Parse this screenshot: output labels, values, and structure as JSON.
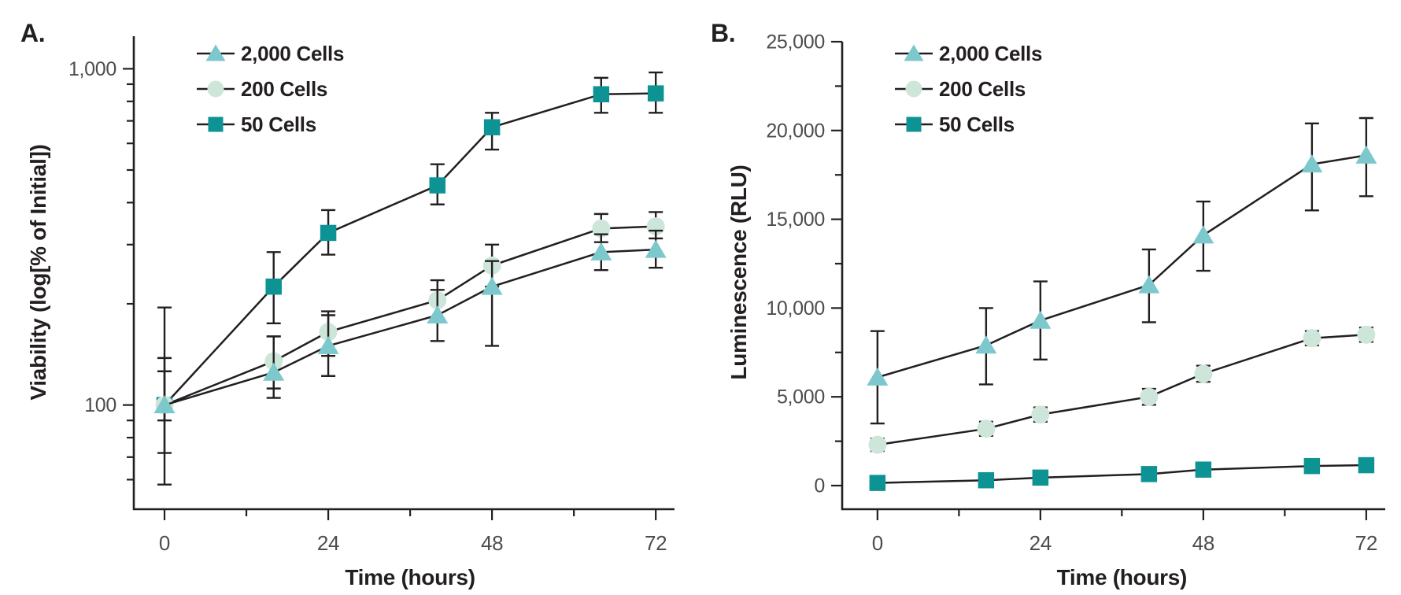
{
  "figure_background": "#ffffff",
  "colors": {
    "line": "#231f20",
    "axis": "#231f20",
    "title_text": "#231f20",
    "tick_text": "#4c4d4f",
    "series_2000_cells": "#7cc8cd",
    "series_200_cells": "#cee6d9",
    "series_50_cells": "#0e9394"
  },
  "legend": {
    "items": [
      {
        "label": "2,000 Cells",
        "marker": "triangle-icon",
        "color": "#7cc8cd"
      },
      {
        "label": "200 Cells",
        "marker": "circle-icon",
        "color": "#cee6d9"
      },
      {
        "label": "50 Cells",
        "marker": "square-icon",
        "color": "#0e9394"
      }
    ],
    "position": "top-left-inside"
  },
  "chart_data": [
    {
      "id": "A",
      "panel_label": "A.",
      "type": "line",
      "xlabel": "Time (hours)",
      "ylabel": "Viability (log[% of Initial])",
      "y_scale": "log",
      "ylim": [
        49,
        1250
      ],
      "xlim": [
        -4.5,
        74.75
      ],
      "grid": false,
      "x_major_ticks": [
        {
          "v": 0,
          "label": "0"
        },
        {
          "v": 24,
          "label": "24"
        },
        {
          "v": 48,
          "label": "48"
        },
        {
          "v": 72,
          "label": "72"
        }
      ],
      "x_minor_ticks": [
        12,
        36,
        60
      ],
      "y_major_ticks": [
        {
          "v": 100,
          "label": "100"
        },
        {
          "v": 1000,
          "label": "1,000"
        }
      ],
      "y_minor_ticks": [
        60,
        70,
        80,
        90,
        200,
        300,
        400,
        500,
        600,
        700,
        800,
        900
      ],
      "x": [
        0,
        16,
        24,
        40,
        48,
        64,
        72
      ],
      "series": [
        {
          "name": "2,000 Cells",
          "marker": "triangle",
          "color": "#7cc8cd",
          "values": [
            100,
            125,
            150,
            185,
            225,
            285,
            290
          ],
          "err_lo": [
            90,
            105,
            122,
            155,
            150,
            252,
            256
          ],
          "err_hi": [
            126,
            160,
            185,
            220,
            268,
            322,
            330
          ]
        },
        {
          "name": "200 Cells",
          "marker": "circle",
          "color": "#cee6d9",
          "values": [
            100,
            135,
            165,
            205,
            260,
            335,
            340
          ],
          "err_lo": [
            72,
            112,
            140,
            180,
            225,
            305,
            313
          ],
          "err_hi": [
            138,
            160,
            190,
            235,
            300,
            370,
            375
          ]
        },
        {
          "name": "50 Cells",
          "marker": "square",
          "color": "#0e9394",
          "values": [
            100,
            225,
            325,
            450,
            670,
            840,
            845
          ],
          "err_lo": [
            58,
            175,
            280,
            395,
            575,
            740,
            740
          ],
          "err_hi": [
            195,
            285,
            380,
            520,
            740,
            940,
            975
          ]
        }
      ]
    },
    {
      "id": "B",
      "panel_label": "B.",
      "type": "line",
      "xlabel": "Time (hours)",
      "ylabel": "Luminescence (RLU)",
      "y_scale": "linear",
      "ylim": [
        -1330,
        25000
      ],
      "xlim": [
        -5.2,
        74.8
      ],
      "grid": false,
      "x_major_ticks": [
        {
          "v": 0,
          "label": "0"
        },
        {
          "v": 24,
          "label": "24"
        },
        {
          "v": 48,
          "label": "48"
        },
        {
          "v": 72,
          "label": "72"
        }
      ],
      "x_minor_ticks": [
        12,
        36,
        60
      ],
      "y_major_ticks": [
        {
          "v": 0,
          "label": "0"
        },
        {
          "v": 5000,
          "label": "5,000"
        },
        {
          "v": 10000,
          "label": "10,000"
        },
        {
          "v": 15000,
          "label": "15,000"
        },
        {
          "v": 20000,
          "label": "20,000"
        },
        {
          "v": 25000,
          "label": "25,000"
        }
      ],
      "y_minor_ticks": [
        2500,
        7500,
        12500,
        17500,
        22500
      ],
      "x": [
        0,
        16,
        24,
        40,
        48,
        64,
        72
      ],
      "series": [
        {
          "name": "2,000 Cells",
          "marker": "triangle",
          "color": "#7cc8cd",
          "values": [
            6100,
            7900,
            9300,
            11300,
            14100,
            18100,
            18600
          ],
          "err_lo": [
            3500,
            5700,
            7100,
            9200,
            12100,
            15500,
            16300
          ],
          "err_hi": [
            8700,
            10000,
            11500,
            13300,
            16000,
            20400,
            20700
          ]
        },
        {
          "name": "200 Cells",
          "marker": "circle",
          "color": "#cee6d9",
          "values": [
            2300,
            3200,
            4000,
            5000,
            6300,
            8300,
            8500
          ],
          "err_lo": [
            1950,
            2800,
            3600,
            4550,
            5850,
            7900,
            8100
          ],
          "err_hi": [
            2650,
            3600,
            4400,
            5450,
            6750,
            8700,
            8900
          ]
        },
        {
          "name": "50 Cells",
          "marker": "square",
          "color": "#0e9394",
          "values": [
            150,
            300,
            450,
            650,
            900,
            1100,
            1150
          ],
          "err_lo": [
            0,
            150,
            300,
            500,
            750,
            950,
            1000
          ],
          "err_hi": [
            300,
            450,
            600,
            800,
            1050,
            1250,
            1300
          ]
        }
      ]
    }
  ]
}
